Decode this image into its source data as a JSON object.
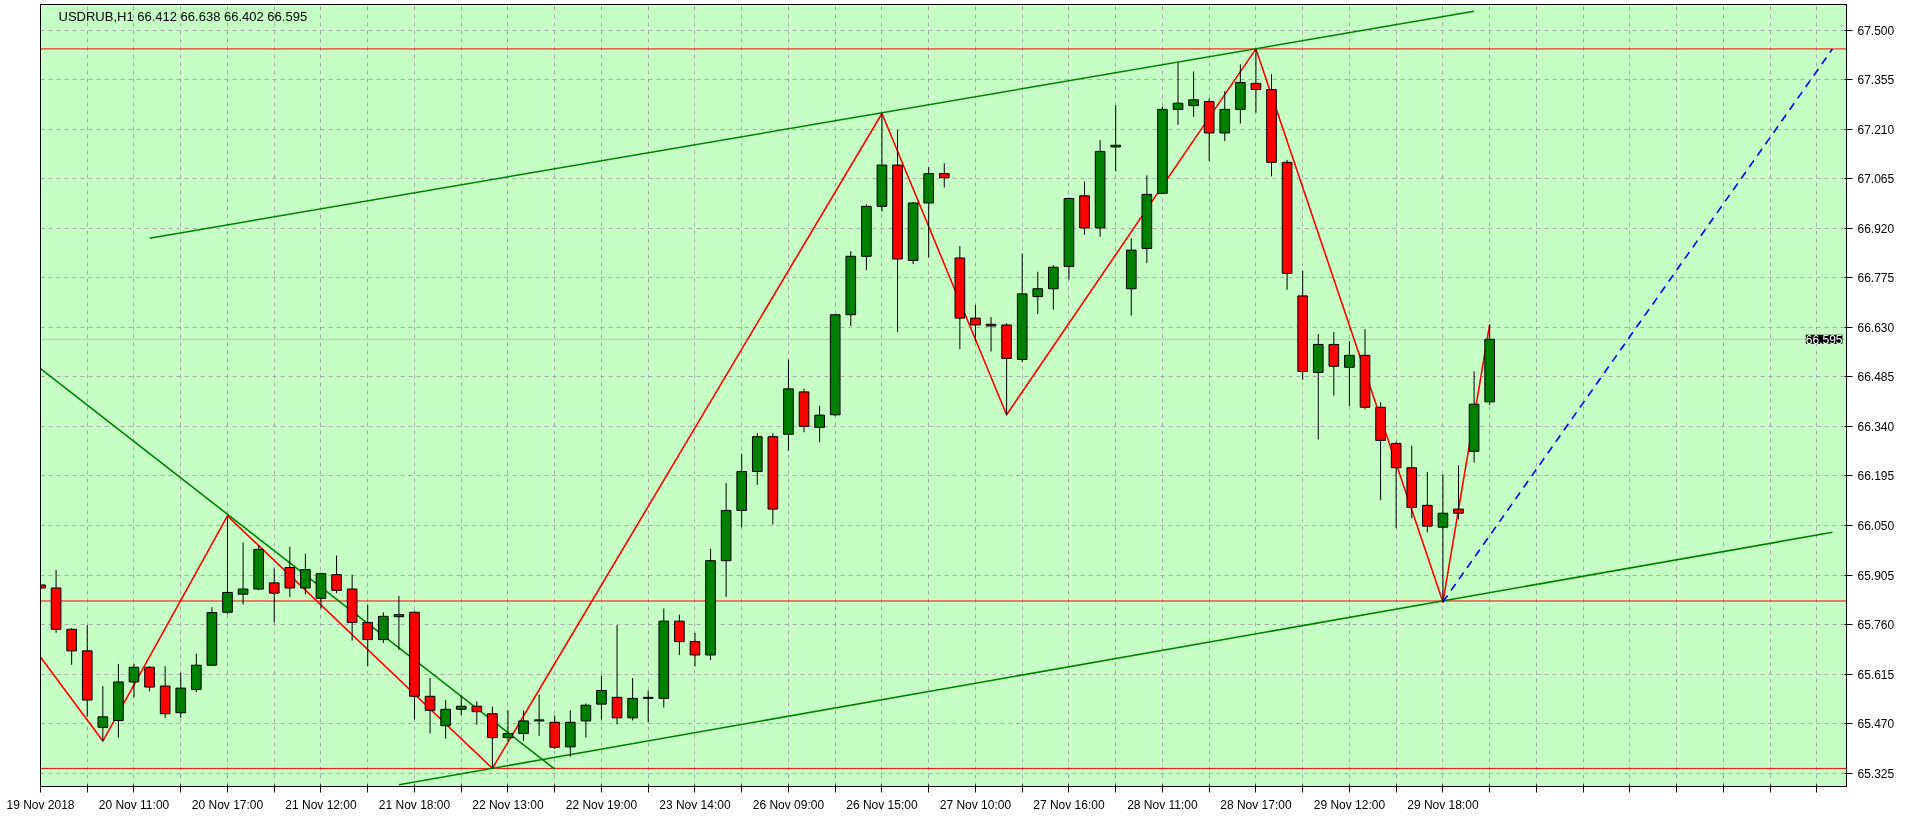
{
  "chart_data": {
    "type": "candlestick",
    "title": "USDRUB,H1  66.412 66.638 66.402 66.595",
    "categories": [
      "19 Nov 2018",
      null,
      null,
      null,
      null,
      null,
      "20 Nov 11:00",
      null,
      null,
      null,
      null,
      null,
      "20 Nov 17:00",
      null,
      null,
      null,
      null,
      null,
      "21 Nov 12:00",
      null,
      null,
      null,
      null,
      null,
      "21 Nov 18:00",
      null,
      null,
      null,
      null,
      null,
      "22 Nov 13:00",
      null,
      null,
      null,
      null,
      null,
      "22 Nov 19:00",
      null,
      null,
      null,
      null,
      null,
      "23 Nov 14:00",
      null,
      null,
      null,
      null,
      null,
      "26 Nov 09:00",
      null,
      null,
      null,
      null,
      null,
      "26 Nov 15:00",
      null,
      null,
      null,
      null,
      null,
      "27 Nov 10:00",
      null,
      null,
      null,
      null,
      null,
      "27 Nov 16:00",
      null,
      null,
      null,
      null,
      null,
      "28 Nov 11:00",
      null,
      null,
      null,
      null,
      null,
      "28 Nov 17:00",
      null,
      null,
      null,
      null,
      null,
      "29 Nov 12:00",
      null,
      null,
      null,
      null,
      null,
      "29 Nov 18:00",
      null,
      null,
      null,
      null,
      null,
      null,
      null,
      null,
      null,
      null,
      null,
      null,
      null,
      null,
      null,
      null,
      null,
      null,
      null,
      null,
      null,
      null,
      null,
      null,
      null
    ],
    "ohlc": [
      [
        65.876,
        65.914,
        65.864,
        65.867
      ],
      [
        65.867,
        65.92,
        65.736,
        65.746
      ],
      [
        65.746,
        65.75,
        65.642,
        65.683
      ],
      [
        65.683,
        65.758,
        65.49,
        65.539
      ],
      [
        65.459,
        65.58,
        65.419,
        65.49
      ],
      [
        65.479,
        65.645,
        65.429,
        65.592
      ],
      [
        65.592,
        65.645,
        65.547,
        65.635
      ],
      [
        65.635,
        65.638,
        65.565,
        65.577
      ],
      [
        65.58,
        65.638,
        65.487,
        65.499
      ],
      [
        65.502,
        65.619,
        65.487,
        65.574
      ],
      [
        65.57,
        65.675,
        65.562,
        65.641
      ],
      [
        65.641,
        65.811,
        65.64,
        65.795
      ],
      [
        65.796,
        66.078,
        65.79,
        65.854
      ],
      [
        65.849,
        66.0,
        65.819,
        65.864
      ],
      [
        65.864,
        65.992,
        65.86,
        65.98
      ],
      [
        65.882,
        65.924,
        65.766,
        65.852
      ],
      [
        65.927,
        65.988,
        65.841,
        65.867
      ],
      [
        65.867,
        65.967,
        65.849,
        65.921
      ],
      [
        65.837,
        65.912,
        65.807,
        65.909
      ],
      [
        65.906,
        65.962,
        65.852,
        65.86
      ],
      [
        65.864,
        65.906,
        65.713,
        65.766
      ],
      [
        65.766,
        65.819,
        65.638,
        65.716
      ],
      [
        65.716,
        65.796,
        65.706,
        65.784
      ],
      [
        65.783,
        65.844,
        65.686,
        65.789
      ],
      [
        65.796,
        65.799,
        65.482,
        65.55
      ],
      [
        65.55,
        65.604,
        65.441,
        65.509
      ],
      [
        65.464,
        65.539,
        65.426,
        65.512
      ],
      [
        65.512,
        65.552,
        65.494,
        65.521
      ],
      [
        65.521,
        65.535,
        65.467,
        65.505
      ],
      [
        65.499,
        65.52,
        65.339,
        65.429
      ],
      [
        65.429,
        65.509,
        65.419,
        65.441
      ],
      [
        65.441,
        65.509,
        65.42,
        65.478
      ],
      [
        65.478,
        65.555,
        65.434,
        65.481
      ],
      [
        65.474,
        65.494,
        65.396,
        65.401
      ],
      [
        65.402,
        65.509,
        65.373,
        65.474
      ],
      [
        65.478,
        65.529,
        65.429,
        65.524
      ],
      [
        65.527,
        65.61,
        65.482,
        65.567
      ],
      [
        65.547,
        65.758,
        65.468,
        65.487
      ],
      [
        65.487,
        65.603,
        65.479,
        65.544
      ],
      [
        65.544,
        65.567,
        65.474,
        65.547
      ],
      [
        65.544,
        65.807,
        65.517,
        65.77
      ],
      [
        65.77,
        65.789,
        65.671,
        65.71
      ],
      [
        65.71,
        65.736,
        65.638,
        65.671
      ],
      [
        65.671,
        65.982,
        65.656,
        65.947
      ],
      [
        65.947,
        66.174,
        65.841,
        66.094
      ],
      [
        66.094,
        66.26,
        66.045,
        66.208
      ],
      [
        66.208,
        66.32,
        66.169,
        66.31
      ],
      [
        66.31,
        66.32,
        66.053,
        66.098
      ],
      [
        66.317,
        66.536,
        66.269,
        66.45
      ],
      [
        66.441,
        66.45,
        66.323,
        66.34
      ],
      [
        66.337,
        66.4,
        66.294,
        66.373
      ],
      [
        66.374,
        66.669,
        66.37,
        66.667
      ],
      [
        66.667,
        66.853,
        66.634,
        66.838
      ],
      [
        66.838,
        66.99,
        66.797,
        66.984
      ],
      [
        66.984,
        67.256,
        66.969,
        67.105
      ],
      [
        67.105,
        67.208,
        66.616,
        66.83
      ],
      [
        66.826,
        66.997,
        66.815,
        66.994
      ],
      [
        66.994,
        67.099,
        66.835,
        67.08
      ],
      [
        67.08,
        67.11,
        67.039,
        67.068
      ],
      [
        66.833,
        66.868,
        66.566,
        66.657
      ],
      [
        66.657,
        66.695,
        66.589,
        66.637
      ],
      [
        66.639,
        66.66,
        66.559,
        66.634
      ],
      [
        66.637,
        66.642,
        66.374,
        66.539
      ],
      [
        66.536,
        66.846,
        66.528,
        66.728
      ],
      [
        66.72,
        66.793,
        66.669,
        66.743
      ],
      [
        66.743,
        66.812,
        66.682,
        66.806
      ],
      [
        66.808,
        67.01,
        66.77,
        67.007
      ],
      [
        67.015,
        67.057,
        66.901,
        66.921
      ],
      [
        66.921,
        67.178,
        66.895,
        67.145
      ],
      [
        67.158,
        67.28,
        67.087,
        67.163
      ],
      [
        66.743,
        66.891,
        66.664,
        66.856
      ],
      [
        66.861,
        67.075,
        66.818,
        67.019
      ],
      [
        67.022,
        67.276,
        67.02,
        67.268
      ],
      [
        67.268,
        67.404,
        67.223,
        67.286
      ],
      [
        67.279,
        67.379,
        67.246,
        67.296
      ],
      [
        67.291,
        67.3,
        67.117,
        67.199
      ],
      [
        67.199,
        67.321,
        67.175,
        67.268
      ],
      [
        67.268,
        67.4,
        67.226,
        67.347
      ],
      [
        67.344,
        67.445,
        67.258,
        67.326
      ],
      [
        67.326,
        67.371,
        67.072,
        67.113
      ],
      [
        67.113,
        67.12,
        66.74,
        66.788
      ],
      [
        66.722,
        66.796,
        66.476,
        66.501
      ],
      [
        66.498,
        66.61,
        66.302,
        66.58
      ],
      [
        66.58,
        66.616,
        66.43,
        66.516
      ],
      [
        66.513,
        66.589,
        66.4,
        66.548
      ],
      [
        66.548,
        66.625,
        66.39,
        66.396
      ],
      [
        66.396,
        66.411,
        66.124,
        66.299
      ],
      [
        66.29,
        66.295,
        66.042,
        66.219
      ],
      [
        66.219,
        66.284,
        66.071,
        66.103
      ],
      [
        66.109,
        66.207,
        66.03,
        66.048
      ],
      [
        66.045,
        66.199,
        65.826,
        66.086
      ],
      [
        66.098,
        66.226,
        66.068,
        66.086
      ],
      [
        66.267,
        66.501,
        66.234,
        66.405
      ],
      [
        66.412,
        66.638,
        66.402,
        66.595
      ],
      null,
      null,
      null,
      null,
      null,
      null,
      null,
      null,
      null,
      null,
      null,
      null,
      null,
      null,
      null,
      null,
      null,
      null,
      null,
      null,
      null,
      null
    ],
    "colors": [
      "#ff0000",
      "#ff0000",
      "#ff0000",
      "#ff0000",
      "#008000",
      "#008000",
      "#008000",
      "#ff0000",
      "#ff0000",
      "#008000",
      "#008000",
      "#008000",
      "#008000",
      "#008000",
      "#008000",
      "#ff0000",
      "#ff0000",
      "#008000",
      "#008000",
      "#ff0000",
      "#ff0000",
      "#ff0000",
      "#008000",
      "#008000",
      "#ff0000",
      "#ff0000",
      "#008000",
      "#008000",
      "#ff0000",
      "#ff0000",
      "#008000",
      "#008000",
      "#008000",
      "#ff0000",
      "#008000",
      "#008000",
      "#008000",
      "#ff0000",
      "#008000",
      "#008000",
      "#008000",
      "#ff0000",
      "#ff0000",
      "#008000",
      "#008000",
      "#008000",
      "#008000",
      "#ff0000",
      "#008000",
      "#ff0000",
      "#008000",
      "#008000",
      "#008000",
      "#008000",
      "#008000",
      "#ff0000",
      "#008000",
      "#008000",
      "#ff0000",
      "#ff0000",
      "#ff0000",
      "#ff0000",
      "#ff0000",
      "#008000",
      "#008000",
      "#008000",
      "#008000",
      "#ff0000",
      "#008000",
      "#008000",
      "#008000",
      "#008000",
      "#008000",
      "#008000",
      "#008000",
      "#ff0000",
      "#008000",
      "#008000",
      "#ff0000",
      "#ff0000",
      "#ff0000",
      "#ff0000",
      "#008000",
      "#ff0000",
      "#008000",
      "#ff0000",
      "#ff0000",
      "#ff0000",
      "#ff0000",
      "#ff0000",
      "#008000",
      "#ff0000",
      "#008000",
      "#008000",
      null,
      null,
      null,
      null,
      null,
      null,
      null,
      null,
      null,
      null,
      null,
      null,
      null,
      null,
      null,
      null,
      null,
      null,
      null,
      null,
      null,
      null
    ],
    "series": [
      {
        "type": "line",
        "color": "#ff0000",
        "values": [
          65.665,
          null,
          null,
          null,
          65.419,
          null,
          null,
          null,
          null,
          null,
          null,
          null,
          66.078,
          null,
          null,
          null,
          null,
          null,
          null,
          null,
          null,
          null,
          null,
          null,
          null,
          null,
          null,
          null,
          null,
          65.339,
          null,
          null,
          null,
          null,
          null,
          null,
          null,
          null,
          null,
          null,
          null,
          null,
          null,
          null,
          null,
          null,
          null,
          null,
          null,
          null,
          null,
          null,
          null,
          null,
          67.256,
          null,
          null,
          null,
          null,
          null,
          null,
          null,
          66.374,
          null,
          null,
          null,
          null,
          null,
          null,
          null,
          null,
          null,
          null,
          null,
          null,
          null,
          null,
          null,
          67.445,
          null,
          null,
          null,
          null,
          null,
          null,
          null,
          null,
          null,
          null,
          null,
          65.826,
          null,
          null,
          66.638,
          null,
          null,
          null,
          null,
          null,
          null,
          null,
          null,
          null,
          null,
          null,
          null,
          null,
          null,
          null,
          null,
          null,
          null,
          null,
          null,
          null,
          null
        ]
      },
      {
        "type": "line",
        "color": "#008000",
        "values": [
          null,
          null,
          null,
          null,
          null,
          null,
          null,
          66.891,
          null,
          null,
          null,
          null,
          null,
          null,
          null,
          null,
          null,
          null,
          null,
          null,
          null,
          null,
          null,
          null,
          null,
          null,
          null,
          null,
          null,
          null,
          null,
          null,
          null,
          null,
          null,
          null,
          null,
          null,
          null,
          null,
          null,
          null,
          null,
          null,
          null,
          null,
          null,
          null,
          null,
          null,
          null,
          null,
          null,
          null,
          null,
          null,
          null,
          null,
          null,
          null,
          null,
          null,
          null,
          null,
          null,
          null,
          null,
          null,
          null,
          null,
          null,
          null,
          null,
          null,
          null,
          null,
          null,
          null,
          null,
          null,
          null,
          null,
          null,
          null,
          null,
          null,
          null,
          null,
          null,
          null,
          null,
          null,
          67.555,
          null,
          null,
          null,
          null,
          null,
          null,
          null,
          null,
          null,
          null,
          null,
          null,
          null,
          null,
          null,
          null,
          null,
          null,
          null,
          null,
          null,
          null,
          null
        ]
      },
      {
        "type": "line",
        "color": "#008000",
        "values": [
          null,
          null,
          null,
          null,
          null,
          null,
          null,
          null,
          null,
          null,
          null,
          null,
          null,
          null,
          null,
          null,
          null,
          null,
          null,
          null,
          null,
          null,
          null,
          65.291,
          null,
          null,
          null,
          null,
          null,
          null,
          null,
          null,
          null,
          null,
          null,
          null,
          null,
          null,
          null,
          null,
          null,
          null,
          null,
          null,
          null,
          null,
          null,
          null,
          null,
          null,
          null,
          null,
          null,
          null,
          null,
          null,
          null,
          null,
          null,
          null,
          null,
          null,
          null,
          null,
          null,
          null,
          null,
          null,
          null,
          null,
          null,
          null,
          null,
          null,
          null,
          null,
          null,
          null,
          null,
          null,
          null,
          null,
          null,
          null,
          null,
          null,
          null,
          null,
          null,
          null,
          null,
          null,
          null,
          null,
          null,
          null,
          null,
          null,
          null,
          null,
          null,
          null,
          null,
          null,
          null,
          null,
          null,
          null,
          null,
          null,
          null,
          null,
          null,
          null,
          null,
          66.03
        ]
      },
      {
        "type": "line",
        "color": "#008000",
        "values": [
          66.509,
          null,
          null,
          null,
          null,
          null,
          null,
          null,
          null,
          null,
          null,
          null,
          null,
          null,
          null,
          null,
          null,
          null,
          null,
          null,
          null,
          null,
          null,
          null,
          null,
          null,
          null,
          null,
          null,
          null,
          null,
          null,
          null,
          65.337,
          null,
          null,
          null,
          null,
          null,
          null,
          null,
          null,
          null,
          null,
          null,
          null,
          null,
          null,
          null,
          null,
          null,
          null,
          null,
          null,
          null,
          null,
          null,
          null,
          null,
          null,
          null,
          null,
          null,
          null,
          null,
          null,
          null,
          null,
          null,
          null,
          null,
          null,
          null,
          null,
          null,
          null,
          null,
          null,
          null,
          null,
          null,
          null,
          null,
          null,
          null,
          null,
          null,
          null,
          null,
          null,
          null,
          null,
          null,
          null,
          null,
          null,
          null,
          null,
          null,
          null,
          null,
          null,
          null,
          null,
          null,
          null,
          null,
          null,
          null,
          null,
          null,
          null,
          null,
          null,
          null,
          null
        ]
      },
      {
        "type": "line",
        "color": "#0000ff",
        "line_style": "dashed",
        "values": [
          null,
          null,
          null,
          null,
          null,
          null,
          null,
          null,
          null,
          null,
          null,
          null,
          null,
          null,
          null,
          null,
          null,
          null,
          null,
          null,
          null,
          null,
          null,
          null,
          null,
          null,
          null,
          null,
          null,
          null,
          null,
          null,
          null,
          null,
          null,
          null,
          null,
          null,
          null,
          null,
          null,
          null,
          null,
          null,
          null,
          null,
          null,
          null,
          null,
          null,
          null,
          null,
          null,
          null,
          null,
          null,
          null,
          null,
          null,
          null,
          null,
          null,
          null,
          null,
          null,
          null,
          null,
          null,
          null,
          null,
          null,
          null,
          null,
          null,
          null,
          null,
          null,
          null,
          null,
          null,
          null,
          null,
          null,
          null,
          null,
          null,
          null,
          null,
          null,
          null,
          65.826,
          null,
          null,
          null,
          null,
          null,
          null,
          null,
          null,
          null,
          null,
          null,
          null,
          null,
          null,
          null,
          null,
          null,
          null,
          null,
          null,
          null,
          null,
          null,
          null,
          67.445
        ]
      }
    ],
    "ref_lines": [
      {
        "axis": "y",
        "value": 67.445,
        "color": "#ff0000"
      },
      {
        "axis": "y",
        "value": 65.829,
        "color": "#ff0000"
      },
      {
        "axis": "y",
        "value": 65.339,
        "color": "#ff0000"
      },
      {
        "axis": "y",
        "value": 66.595,
        "label": "66.595",
        "color": "#c0c0c0"
      }
    ],
    "ylim": [
      65.286,
      67.575
    ],
    "yticks": [
      {
        "value": 65.325,
        "label": "65.325"
      },
      {
        "value": 65.47,
        "label": "65.470"
      },
      {
        "value": 65.615,
        "label": "65.615"
      },
      {
        "value": 65.76,
        "label": "65.760"
      },
      {
        "value": 65.905,
        "label": "65.905"
      },
      {
        "value": 66.05,
        "label": "66.050"
      },
      {
        "value": 66.195,
        "label": "66.195"
      },
      {
        "value": 66.34,
        "label": "66.340"
      },
      {
        "value": 66.485,
        "label": "66.485"
      },
      {
        "value": 66.63,
        "label": "66.630"
      },
      {
        "value": 66.775,
        "label": "66.775"
      },
      {
        "value": 66.92,
        "label": "66.920"
      },
      {
        "value": 67.065,
        "label": "67.065"
      },
      {
        "value": 67.21,
        "label": "67.210"
      },
      {
        "value": 67.355,
        "label": "67.355"
      },
      {
        "value": 67.5,
        "label": "67.500"
      }
    ],
    "grid": true
  }
}
